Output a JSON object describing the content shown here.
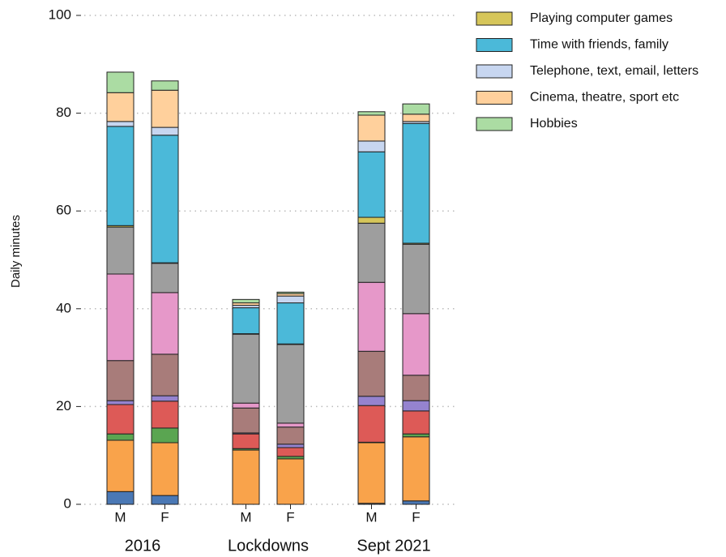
{
  "chart_data": {
    "type": "stacked_bar",
    "y_label": "Daily minutes",
    "categories": [
      "M",
      "F",
      "M",
      "F",
      "M",
      "F"
    ],
    "groups": [
      "2016",
      "Lockdowns",
      "Sept 2021"
    ],
    "ylim": [
      0,
      100
    ],
    "yticks": [
      0,
      20,
      40,
      60,
      80,
      100
    ],
    "grid": true,
    "series": [
      {
        "name": null,
        "color": "#4a78b5",
        "values": [
          2.6,
          1.8,
          0,
          0,
          0.2,
          0.7
        ]
      },
      {
        "name": null,
        "color": "#f9a34b",
        "values": [
          10.5,
          10.8,
          11.1,
          9.3,
          12.4,
          13.1
        ]
      },
      {
        "name": null,
        "color": "#5aa551",
        "values": [
          1.3,
          3.0,
          0.3,
          0.5,
          0.1,
          0.6
        ]
      },
      {
        "name": null,
        "color": "#dd5a57",
        "values": [
          6.0,
          5.5,
          3.0,
          1.8,
          7.5,
          4.7
        ]
      },
      {
        "name": null,
        "color": "#9583cf",
        "values": [
          0.8,
          1.1,
          0.2,
          0.7,
          1.9,
          2.1
        ]
      },
      {
        "name": null,
        "color": "#a87c7a",
        "values": [
          8.2,
          8.5,
          5.1,
          3.5,
          9.2,
          5.2
        ]
      },
      {
        "name": null,
        "color": "#e698c9",
        "values": [
          17.7,
          12.6,
          1.0,
          0.8,
          14.1,
          12.6
        ]
      },
      {
        "name": null,
        "color": "#9e9e9e",
        "values": [
          9.6,
          6.0,
          14.1,
          16.1,
          12.1,
          14.2
        ]
      },
      {
        "name": "Playing computer games",
        "color": "#d6c65a",
        "values": [
          0.3,
          0.1,
          0.1,
          0.1,
          1.2,
          0.2
        ]
      },
      {
        "name": "Time with friends, family",
        "color": "#4bb9d9",
        "values": [
          20.3,
          26.1,
          5.3,
          8.4,
          13.4,
          24.5
        ]
      },
      {
        "name": "Telephone, text, email, letters",
        "color": "#c7d6f0",
        "values": [
          1.0,
          1.6,
          0.5,
          1.4,
          2.2,
          0.4
        ]
      },
      {
        "name": "Cinema, theatre, sport etc",
        "color": "#ffd09c",
        "values": [
          5.9,
          7.6,
          0.5,
          0.5,
          5.3,
          1.5
        ]
      },
      {
        "name": "Hobbies",
        "color": "#abdca3",
        "values": [
          4.2,
          1.9,
          0.7,
          0.3,
          0.7,
          2.1
        ]
      }
    ]
  }
}
